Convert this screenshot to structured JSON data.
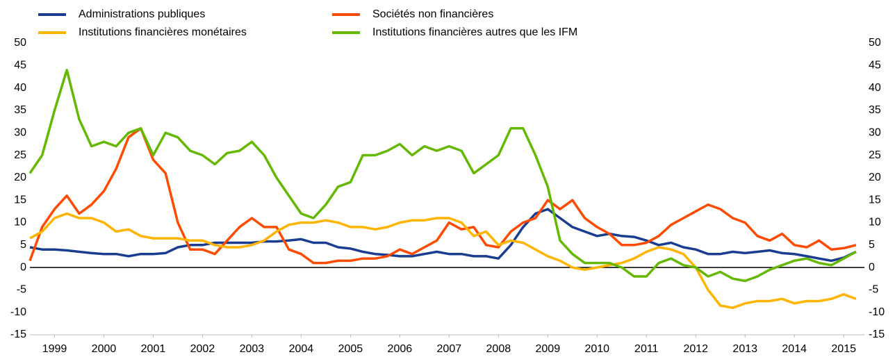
{
  "chart_data": {
    "type": "line",
    "x": [
      1999,
      1999.25,
      1999.5,
      1999.75,
      2000,
      2000.25,
      2000.5,
      2000.75,
      2001,
      2001.25,
      2001.5,
      2001.75,
      2002,
      2002.25,
      2002.5,
      2002.75,
      2003,
      2003.25,
      2003.5,
      2003.75,
      2004,
      2004.25,
      2004.5,
      2004.75,
      2005,
      2005.25,
      2005.5,
      2005.75,
      2006,
      2006.25,
      2006.5,
      2006.75,
      2007,
      2007.25,
      2007.5,
      2007.75,
      2008,
      2008.25,
      2008.5,
      2008.75,
      2009,
      2009.25,
      2009.5,
      2009.75,
      2010,
      2010.25,
      2010.5,
      2010.75,
      2011,
      2011.25,
      2011.5,
      2011.75,
      2012,
      2012.25,
      2012.5,
      2012.75,
      2013,
      2013.25,
      2013.5,
      2013.75,
      2014,
      2014.25,
      2014.5,
      2014.75,
      2015,
      2015.25,
      2015.5,
      2015.75
    ],
    "series": [
      {
        "name": "Administrations publiques",
        "color": "#1a3d8f",
        "values": [
          4.5,
          4,
          4,
          3.8,
          3.5,
          3.2,
          3,
          3,
          2.5,
          3,
          3,
          3.2,
          4.5,
          5,
          5,
          5.5,
          5.5,
          5.5,
          5.5,
          5.8,
          5.8,
          6,
          6.3,
          5.5,
          5.5,
          4.5,
          4.2,
          3.5,
          3,
          2.8,
          2.5,
          2.5,
          3,
          3.5,
          3,
          3,
          2.5,
          2.5,
          2,
          5,
          9,
          12,
          13,
          11,
          9,
          8,
          7,
          7.5,
          7,
          6.8,
          6,
          5,
          5.5,
          4.5,
          4,
          3,
          3,
          3.5,
          3.2,
          3.5,
          3.8,
          3.2,
          3,
          2.5,
          2,
          1.5,
          2.2,
          3.5
        ]
      },
      {
        "name": "Sociétés non financières",
        "color": "#ff4b00",
        "values": [
          1.5,
          9,
          13,
          16,
          12,
          14,
          17,
          22,
          29,
          31,
          24,
          21,
          10,
          4,
          4,
          3,
          6,
          9,
          11,
          9,
          9,
          4,
          3,
          1,
          1,
          1.5,
          1.5,
          2,
          2,
          2.5,
          4,
          3,
          4.5,
          6,
          10,
          8.5,
          9,
          5,
          4.5,
          8,
          10,
          11,
          15,
          13,
          15,
          11,
          9,
          7.5,
          5,
          5,
          5.5,
          7,
          9.5,
          11,
          12.5,
          14,
          13,
          11,
          10,
          7,
          6,
          7.5,
          5,
          4.5,
          6,
          4,
          4.3,
          5
        ]
      },
      {
        "name": "Institutions financières monétaires",
        "color": "#ffb400",
        "values": [
          6.5,
          8,
          11,
          12,
          11,
          11,
          10,
          8,
          8.5,
          7,
          6.5,
          6.5,
          6.5,
          6,
          6,
          5,
          4.5,
          4.5,
          5,
          6,
          8,
          9.5,
          10,
          10,
          10.5,
          10,
          9,
          9,
          8.5,
          9,
          10,
          10.5,
          10.5,
          11,
          11,
          10,
          7,
          8,
          5,
          6,
          5.5,
          4,
          2.5,
          1.5,
          0,
          -0.5,
          0,
          0.5,
          1,
          2,
          3.5,
          4.5,
          4,
          3,
          0,
          -5,
          -8.5,
          -9,
          -8,
          -7.5,
          -7.5,
          -7,
          -8,
          -7.5,
          -7.5,
          -7,
          -6,
          -7
        ]
      },
      {
        "name": "Institutions financières autres que les IFM",
        "color": "#65b800",
        "values": [
          21,
          25,
          35,
          44,
          33,
          27,
          28,
          27,
          30,
          31,
          25,
          30,
          29,
          26,
          25,
          23,
          25.5,
          26,
          28,
          25,
          20,
          16,
          12,
          11,
          14,
          18,
          19,
          25,
          25,
          26,
          27.5,
          25,
          27,
          26,
          27,
          26,
          21,
          23,
          25,
          31,
          31,
          25,
          18,
          6,
          3,
          1,
          1,
          1,
          0,
          -2,
          -2,
          1,
          2,
          0.5,
          0,
          -2,
          -1,
          -2.5,
          -3,
          -2,
          -0.5,
          0.5,
          1.5,
          2,
          1,
          0.5,
          2,
          3.5
        ]
      }
    ],
    "xlim": [
      1999,
      2015.92
    ],
    "xticks": [
      {
        "value": 1999.5,
        "label": "1999"
      },
      {
        "value": 2000.5,
        "label": "2000"
      },
      {
        "value": 2001.5,
        "label": "2001"
      },
      {
        "value": 2002.5,
        "label": "2002"
      },
      {
        "value": 2003.5,
        "label": "2003"
      },
      {
        "value": 2004.5,
        "label": "2004"
      },
      {
        "value": 2005.5,
        "label": "2005"
      },
      {
        "value": 2006.5,
        "label": "2006"
      },
      {
        "value": 2007.5,
        "label": "2007"
      },
      {
        "value": 2008.5,
        "label": "2008"
      },
      {
        "value": 2009.5,
        "label": "2009"
      },
      {
        "value": 2010.5,
        "label": "2010"
      },
      {
        "value": 2011.5,
        "label": "2011"
      },
      {
        "value": 2012.5,
        "label": "2012"
      },
      {
        "value": 2013.5,
        "label": "2013"
      },
      {
        "value": 2014.5,
        "label": "2014"
      },
      {
        "value": 2015.5,
        "label": "2015"
      }
    ],
    "ylim": [
      -15,
      50
    ],
    "yticks": [
      -15,
      -10,
      -5,
      0,
      5,
      10,
      15,
      20,
      25,
      30,
      35,
      40,
      45,
      50
    ]
  }
}
